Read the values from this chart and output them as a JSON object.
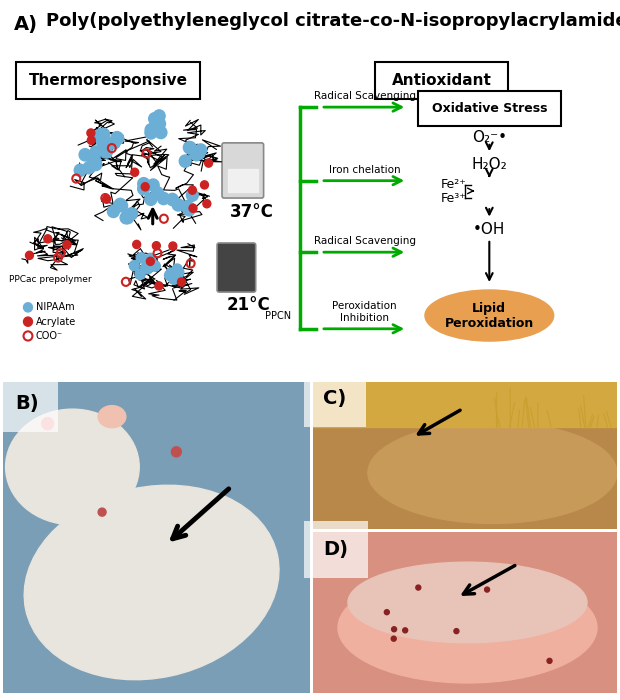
{
  "title": "Poly(polyethyleneglycol citrate-co-N-isopropylacrylamide)",
  "label_A": "A)",
  "label_B": "B)",
  "label_C": "C)",
  "label_D": "D)",
  "thermoresponsive_label": "Thermoresponsive",
  "antioxidant_label": "Antioxidant",
  "temp_37": "37°C",
  "temp_21": "21°C",
  "ppcac_label": "PPCac prepolymer",
  "nipaam_label": "NIPAAm",
  "acrylate_label": "Acrylate",
  "coo_label": "COO⁻",
  "ppcn_label": "PPCN",
  "radical_scavenging1": "Radical Scavenging",
  "iron_chelation": "Iron chelation",
  "radical_scavenging2": "Radical Scavenging",
  "peroxidation_inhibition": "Peroxidation\nInhibition",
  "oxidative_stress": "Oxidative Stress",
  "o2_radical": "O₂⁻•",
  "h2o2": "H₂O₂",
  "fe2": "Fe²⁺",
  "fe3": "Fe³⁺",
  "oh_radical": "•OH",
  "lipid_peroxidation": "Lipid\nPeroxidation",
  "bg_color": "#ffffff",
  "arrow_green": "#00aa00",
  "text_color": "#000000",
  "lipid_box_color": "#e8a050"
}
